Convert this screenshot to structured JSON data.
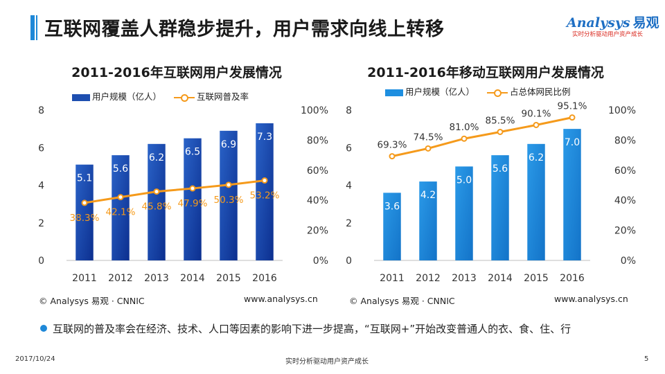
{
  "header": {
    "title": "互联网覆盖人群稳步提升，用户需求向线上转移"
  },
  "logo": {
    "name": "Analysys",
    "cn": "易观",
    "tagline": "实时分析驱动用户资产成长"
  },
  "colors": {
    "accent": "#1e88d8",
    "line": "#f59a1b",
    "bar_left": "#1e4fb0",
    "bar_right": "#1e8fe0"
  },
  "chart_data": [
    {
      "type": "bar",
      "title": "2011-2016年互联网用户发展情况",
      "categories": [
        "2011",
        "2012",
        "2013",
        "2014",
        "2015",
        "2016"
      ],
      "series": [
        {
          "name": "用户规模（亿人）",
          "type": "bar",
          "axis": "left",
          "values": [
            5.1,
            5.6,
            6.2,
            6.5,
            6.9,
            7.3
          ],
          "labels": [
            "5.1",
            "5.6",
            "6.2",
            "6.5",
            "6.9",
            "7.3"
          ]
        },
        {
          "name": "互联网普及率",
          "type": "line",
          "axis": "right",
          "values": [
            38.3,
            42.1,
            45.8,
            47.9,
            50.3,
            53.2
          ],
          "labels": [
            "38.3%",
            "42.1%",
            "45.8%",
            "47.9%",
            "50.3%",
            "53.2%"
          ]
        }
      ],
      "ylim": [
        0,
        8
      ],
      "y_ticks": [
        "0",
        "2",
        "4",
        "6",
        "8"
      ],
      "y2lim": [
        0,
        100
      ],
      "y2_ticks": [
        "0%",
        "20%",
        "40%",
        "60%",
        "80%",
        "100%"
      ],
      "grid": false,
      "legend": "top",
      "credit": "© Analysys 易观 · CNNIC",
      "website": "www.analysys.cn"
    },
    {
      "type": "bar",
      "title": "2011-2016年移动互联网用户发展情况",
      "categories": [
        "2011",
        "2012",
        "2013",
        "2014",
        "2015",
        "2016"
      ],
      "series": [
        {
          "name": "用户规模（亿人）",
          "type": "bar",
          "axis": "left",
          "values": [
            3.6,
            4.2,
            5.0,
            5.6,
            6.2,
            7.0
          ],
          "labels": [
            "3.6",
            "4.2",
            "5.0",
            "5.6",
            "6.2",
            "7.0"
          ]
        },
        {
          "name": "占总体网民比例",
          "type": "line",
          "axis": "right",
          "values": [
            69.3,
            74.5,
            81.0,
            85.5,
            90.1,
            95.1
          ],
          "labels": [
            "69.3%",
            "74.5%",
            "81.0%",
            "85.5%",
            "90.1%",
            "95.1%"
          ]
        }
      ],
      "ylim": [
        0,
        8
      ],
      "y_ticks": [
        "0",
        "2",
        "4",
        "6",
        "8"
      ],
      "y2lim": [
        0,
        100
      ],
      "y2_ticks": [
        "0%",
        "20%",
        "40%",
        "60%",
        "80%",
        "100%"
      ],
      "grid": false,
      "legend": "top",
      "credit": "© Analysys 易观 · CNNIC",
      "website": "www.analysys.cn"
    }
  ],
  "note": "互联网的普及率会在经济、技术、人口等因素的影响下进一步提高，“互联网+”开始改变普通人的衣、食、住、行",
  "footer": {
    "date": "2017/10/24",
    "center": "实时分析驱动用户资产成长",
    "page": "5"
  }
}
